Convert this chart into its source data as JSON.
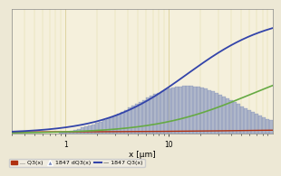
{
  "background_color": "#f5f0dc",
  "fig_background_color": "#ede8d5",
  "grid_color": "#d4c88a",
  "grid_minor_color": "#e0d8a0",
  "xlim": [
    0.3,
    100
  ],
  "ylim": [
    0,
    1.05
  ],
  "xlabel": "x [μm]",
  "xlabel_fontsize": 6.5,
  "red_line_color": "#b03010",
  "green_line_color": "#66aa44",
  "blue_curve_color": "#3344aa",
  "bar_fill_color": "#7788bb",
  "bar_edge_color": "#5566aa",
  "bar_alpha": 0.55,
  "legend_fontsize": 4.5,
  "tick_fontsize": 5.5
}
